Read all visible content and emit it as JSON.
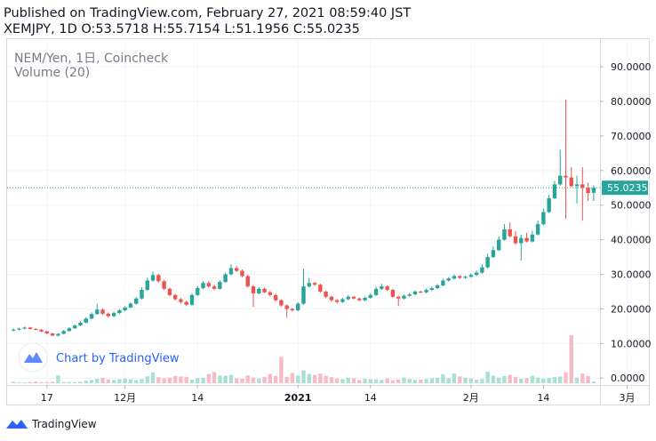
{
  "header": {
    "published": "Published on TradingView.com, February 27, 2021 08:59:40 JST",
    "ohlc": "XEMJPY, 1D O:53.5718 H:55.7154 L:51.1956 C:55.0235"
  },
  "legend": {
    "symbol": "NEM/Yen, 1日, Coincheck",
    "volume": "Volume (20)"
  },
  "watermark": "Chart by TradingView",
  "footer_brand": "TradingView",
  "colors": {
    "up": "#26a69a",
    "down": "#ef5350",
    "up_vol": "#a8e0d6",
    "down_vol": "#f8bbc6",
    "last_price": "#26a69a"
  },
  "chart_data": {
    "type": "candlestick",
    "ylim": [
      -2,
      98
    ],
    "y_ticks": [
      "0.0000",
      "10.0000",
      "20.0000",
      "30.0000",
      "40.0000",
      "50.0000",
      "60.0000",
      "70.0000",
      "80.0000",
      "90.0000"
    ],
    "y_tick_values": [
      0,
      10,
      20,
      30,
      40,
      50,
      60,
      70,
      80,
      90
    ],
    "x_ticks": [
      {
        "label": "17",
        "day": 6
      },
      {
        "label": "12月",
        "day": 20
      },
      {
        "label": "14",
        "day": 33
      },
      {
        "label": "2021",
        "day": 51
      },
      {
        "label": "14",
        "day": 64
      },
      {
        "label": "2月",
        "day": 82
      },
      {
        "label": "14",
        "day": 95
      },
      {
        "label": "3月",
        "day": 110
      }
    ],
    "last_price": 55.0235,
    "last_price_label": "55.0235",
    "closes": [
      14.0,
      14.3,
      14.6,
      14.2,
      14.0,
      13.5,
      12.9,
      12.3,
      12.8,
      13.6,
      14.4,
      15.2,
      16.0,
      17.2,
      18.5,
      19.8,
      18.6,
      17.9,
      18.8,
      19.6,
      20.4,
      21.5,
      23.0,
      25.5,
      28.2,
      29.8,
      28.0,
      25.8,
      24.0,
      22.8,
      22.0,
      21.2,
      24.0,
      26.0,
      27.5,
      26.5,
      25.8,
      27.8,
      30.0,
      31.8,
      31.0,
      29.5,
      26.5,
      24.5,
      25.8,
      24.8,
      24.0,
      22.5,
      21.0,
      20.0,
      19.6,
      21.5,
      26.5,
      27.5,
      27.0,
      25.0,
      23.5,
      22.5,
      22.0,
      22.8,
      23.5,
      23.0,
      22.5,
      23.2,
      24.0,
      25.8,
      26.5,
      25.5,
      23.5,
      23.0,
      23.8,
      24.2,
      25.0,
      24.8,
      25.5,
      26.0,
      26.8,
      28.2,
      28.8,
      29.5,
      29.0,
      29.3,
      29.8,
      30.5,
      32.0,
      35.0,
      37.0,
      40.0,
      43.0,
      41.0,
      39.0,
      40.5,
      39.5,
      41.5,
      44.5,
      48.0,
      52.0,
      56.0,
      58.5,
      58.0,
      55.5,
      56.0,
      55.0,
      53.5,
      55.0235
    ],
    "opens": [
      13.8,
      14.0,
      14.3,
      14.6,
      14.2,
      14.0,
      13.5,
      12.9,
      12.3,
      12.8,
      13.6,
      14.4,
      15.2,
      16.0,
      17.2,
      18.5,
      19.8,
      18.6,
      17.9,
      18.8,
      19.6,
      20.4,
      21.5,
      23.0,
      25.5,
      28.2,
      29.8,
      28.0,
      25.8,
      24.0,
      22.8,
      22.0,
      21.2,
      24.0,
      26.0,
      27.5,
      26.5,
      25.8,
      27.8,
      30.0,
      31.8,
      31.0,
      29.5,
      26.5,
      24.5,
      25.8,
      24.8,
      24.0,
      22.5,
      21.0,
      20.0,
      19.6,
      21.5,
      26.5,
      27.5,
      27.0,
      25.0,
      23.5,
      22.5,
      22.0,
      22.8,
      23.5,
      23.0,
      22.5,
      23.2,
      24.0,
      25.8,
      26.5,
      25.5,
      23.5,
      23.0,
      23.8,
      24.2,
      25.0,
      24.8,
      25.5,
      26.0,
      26.8,
      28.2,
      28.8,
      29.5,
      29.0,
      29.3,
      29.8,
      30.5,
      32.0,
      35.0,
      37.0,
      40.0,
      43.0,
      41.0,
      39.0,
      40.5,
      39.5,
      41.5,
      44.5,
      48.0,
      52.0,
      56.0,
      58.5,
      58.0,
      55.5,
      56.0,
      55.0,
      53.5718
    ],
    "highs": [
      14.4,
      14.6,
      14.9,
      14.8,
      14.4,
      14.2,
      13.7,
      13.1,
      13.0,
      13.9,
      14.7,
      15.5,
      16.4,
      17.6,
      19.0,
      21.5,
      20.2,
      19.0,
      19.2,
      20.0,
      20.8,
      21.9,
      23.5,
      26.2,
      29.0,
      30.8,
      30.2,
      28.4,
      26.2,
      24.4,
      23.2,
      22.4,
      24.5,
      26.6,
      28.0,
      28.0,
      27.0,
      28.3,
      30.5,
      33.0,
      32.4,
      31.4,
      29.9,
      27.0,
      26.3,
      26.1,
      25.2,
      24.4,
      22.8,
      21.3,
      20.3,
      22.0,
      31.5,
      29.0,
      27.8,
      27.3,
      25.3,
      23.8,
      22.9,
      23.2,
      24.0,
      23.8,
      23.3,
      23.6,
      24.5,
      26.4,
      27.2,
      26.8,
      25.8,
      23.8,
      24.2,
      24.6,
      25.4,
      25.3,
      25.9,
      26.5,
      27.2,
      28.7,
      29.2,
      30.0,
      29.8,
      29.6,
      30.2,
      31.0,
      33.0,
      36.0,
      38.0,
      41.0,
      44.5,
      45.0,
      42.5,
      41.5,
      42.0,
      42.5,
      45.5,
      49.0,
      53.0,
      57.0,
      66.0,
      80.5,
      61.0,
      58.5,
      61.0,
      56.5,
      55.7154
    ],
    "lows": [
      13.5,
      13.8,
      14.1,
      14.0,
      13.8,
      13.3,
      12.7,
      12.1,
      12.0,
      12.6,
      13.4,
      14.2,
      15.0,
      15.8,
      17.0,
      18.3,
      18.2,
      17.5,
      17.6,
      18.5,
      19.3,
      20.2,
      21.2,
      22.7,
      25.2,
      27.8,
      27.6,
      25.4,
      23.6,
      22.4,
      21.6,
      20.8,
      20.9,
      23.7,
      25.7,
      26.1,
      25.4,
      25.6,
      27.5,
      29.7,
      30.6,
      29.1,
      26.1,
      20.5,
      24.2,
      24.5,
      23.6,
      22.1,
      20.6,
      17.5,
      19.2,
      19.3,
      21.2,
      26.2,
      26.6,
      24.6,
      23.1,
      22.1,
      21.6,
      21.7,
      22.5,
      22.7,
      22.2,
      22.2,
      22.9,
      23.7,
      25.5,
      25.2,
      23.2,
      20.8,
      22.7,
      23.5,
      23.9,
      24.5,
      24.5,
      25.2,
      25.7,
      26.5,
      27.9,
      28.5,
      28.6,
      28.7,
      29.0,
      29.5,
      30.2,
      31.7,
      34.7,
      36.7,
      39.7,
      40.6,
      38.6,
      34.0,
      39.2,
      39.2,
      41.2,
      44.2,
      47.7,
      51.7,
      55.6,
      46.0,
      55.2,
      50.5,
      45.5,
      51.1956,
      51.1956
    ],
    "volumes": [
      0.9,
      0.6,
      0.5,
      0.8,
      1.0,
      0.7,
      0.8,
      0.9,
      4.8,
      0.8,
      0.7,
      0.6,
      1.0,
      1.6,
      2.0,
      2.8,
      3.4,
      2.4,
      2.0,
      2.6,
      3.0,
      2.5,
      1.8,
      2.6,
      4.3,
      6.8,
      3.8,
      3.0,
      3.5,
      4.5,
      4.2,
      4.0,
      2.2,
      3.1,
      3.4,
      5.8,
      7.0,
      4.8,
      4.6,
      5.2,
      3.1,
      2.8,
      4.8,
      3.6,
      3.0,
      4.0,
      5.8,
      4.5,
      16.5,
      4.0,
      6.5,
      4.8,
      8.0,
      5.8,
      5.2,
      6.0,
      4.5,
      3.8,
      3.0,
      2.6,
      3.5,
      3.0,
      2.0,
      2.8,
      2.5,
      2.4,
      2.0,
      3.0,
      1.8,
      2.4,
      3.5,
      2.6,
      2.0,
      2.2,
      2.6,
      3.1,
      3.4,
      5.6,
      3.2,
      6.0,
      4.2,
      3.5,
      3.0,
      2.2,
      2.6,
      7.2,
      4.8,
      3.5,
      4.5,
      5.2,
      4.0,
      2.8,
      3.2,
      4.6,
      3.5,
      2.9,
      3.3,
      3.8,
      4.2,
      6.8,
      30.0,
      3.5,
      6.0,
      4.5,
      1.0
    ]
  }
}
